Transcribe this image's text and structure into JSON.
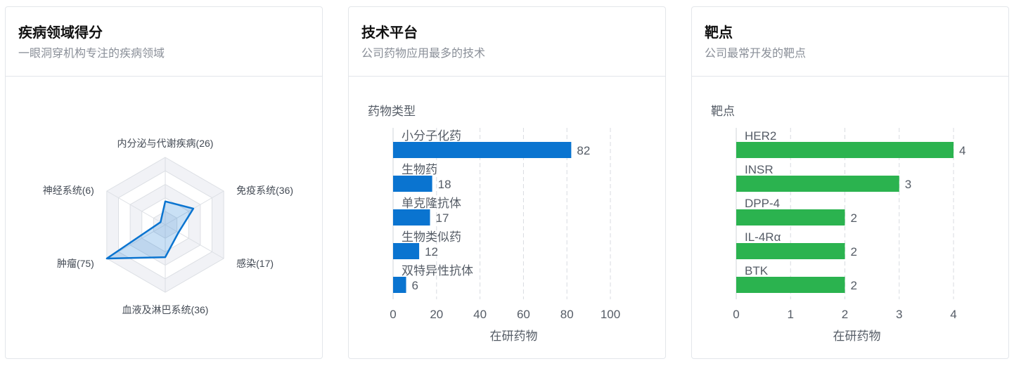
{
  "cards": [
    {
      "title": "疾病领域得分",
      "subtitle": "一眼洞穿机构专注的疾病领域"
    },
    {
      "title": "技术平台",
      "subtitle": "公司药物应用最多的技术"
    },
    {
      "title": "靶点",
      "subtitle": "公司最常开发的靶点"
    }
  ],
  "colors": {
    "radar": "#0a74d0",
    "tech_bar": "#0a74d0",
    "target_bar": "#2bb34f"
  },
  "chart_data": [
    {
      "type": "radar",
      "title": "",
      "axes": [
        {
          "name": "内分泌与代谢疾病",
          "value": 26,
          "label": "内分泌与代谢疾病(26)"
        },
        {
          "name": "免疫系统",
          "value": 36,
          "label": "免疫系统(36)"
        },
        {
          "name": "感染",
          "value": 17,
          "label": "感染(17)"
        },
        {
          "name": "血液及淋巴系统",
          "value": 36,
          "label": "血液及淋巴系统(36)"
        },
        {
          "name": "肿瘤",
          "value": 75,
          "label": "肿瘤(75)"
        },
        {
          "name": "神经系统",
          "value": 6,
          "label": "神经系统(6)"
        }
      ],
      "max": 75,
      "rings": 5
    },
    {
      "type": "bar",
      "orientation": "horizontal",
      "title": "药物类型",
      "categories": [
        "小分子化药",
        "生物药",
        "单克隆抗体",
        "生物类似药",
        "双特异性抗体"
      ],
      "values": [
        82,
        18,
        17,
        12,
        6
      ],
      "xlabel": "在研药物",
      "xlim": [
        0,
        100
      ],
      "xticks": [
        0,
        20,
        40,
        60,
        80,
        100
      ],
      "grid": true
    },
    {
      "type": "bar",
      "orientation": "horizontal",
      "title": "靶点",
      "categories": [
        "HER2",
        "INSR",
        "DPP-4",
        "IL-4Rα",
        "BTK"
      ],
      "values": [
        4,
        3,
        2,
        2,
        2
      ],
      "xlabel": "在研药物",
      "xlim": [
        0,
        4
      ],
      "xticks": [
        0,
        1,
        2,
        3,
        4
      ],
      "grid": true
    }
  ]
}
